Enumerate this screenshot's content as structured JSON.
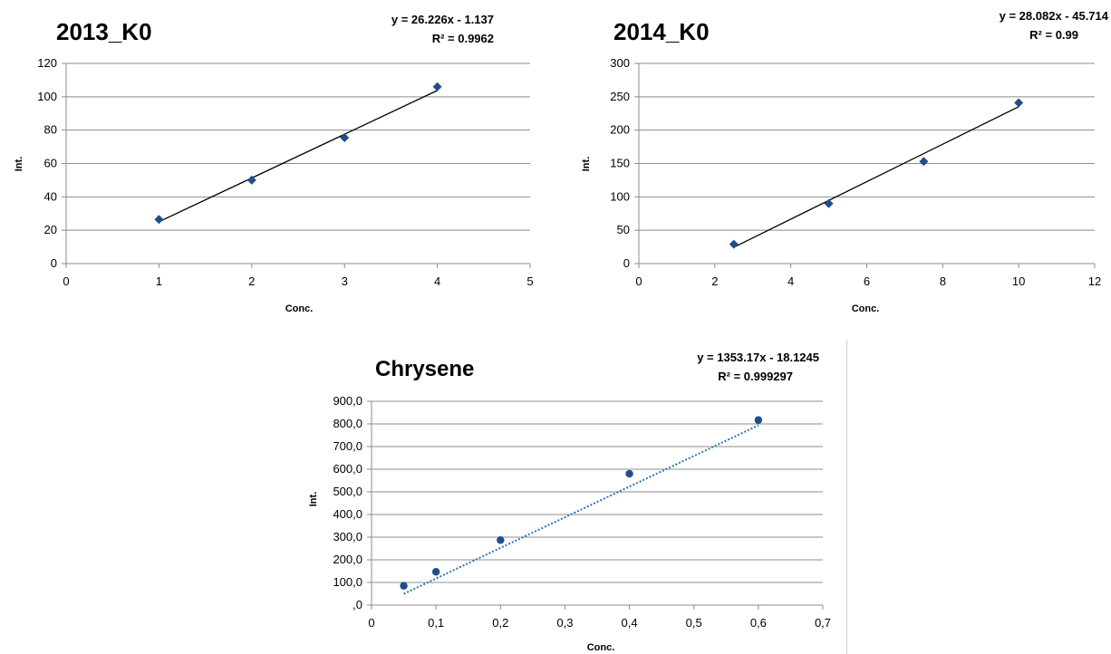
{
  "chart_data": [
    {
      "type": "scatter",
      "title": "2013_K0",
      "xlabel": "Conc.",
      "ylabel": "Int.",
      "xlim": [
        0,
        5
      ],
      "ylim": [
        0,
        120
      ],
      "x_ticks": [
        0,
        1,
        2,
        3,
        4,
        5
      ],
      "y_ticks": [
        0,
        20,
        40,
        60,
        80,
        100,
        120
      ],
      "tick_format": "int",
      "grid": "horizontal",
      "series": [
        {
          "x": [
            1,
            2,
            3,
            4
          ],
          "y": [
            26.5,
            50,
            75.5,
            106
          ],
          "marker": "diamond",
          "color": "#1f4e8c"
        }
      ],
      "trendline": {
        "type": "linear",
        "slope": 26.226,
        "intercept": -1.137,
        "x_range": [
          1,
          4
        ],
        "style": "solid",
        "color": "#000000"
      },
      "equation": "y = 26.226x - 1.137",
      "r2": "R² = 0.9962"
    },
    {
      "type": "scatter",
      "title": "2014_K0",
      "xlabel": "Conc.",
      "ylabel": "Int.",
      "xlim": [
        0,
        12
      ],
      "ylim": [
        0,
        300
      ],
      "x_ticks": [
        0,
        2,
        4,
        6,
        8,
        10,
        12
      ],
      "y_ticks": [
        0,
        50,
        100,
        150,
        200,
        250,
        300
      ],
      "tick_format": "int",
      "grid": "horizontal",
      "series": [
        {
          "x": [
            2.5,
            5,
            7.5,
            10
          ],
          "y": [
            29,
            90,
            153,
            241
          ],
          "marker": "diamond",
          "color": "#1f4e8c"
        }
      ],
      "trendline": {
        "type": "linear",
        "slope": 28.082,
        "intercept": -45.714,
        "x_range": [
          2.5,
          10
        ],
        "style": "solid",
        "color": "#000000"
      },
      "equation": "y = 28.082x - 45.714",
      "r2": "R² = 0.99"
    },
    {
      "type": "scatter",
      "title": "Chrysene",
      "xlabel": "Conc.",
      "ylabel": "Int.",
      "xlim": [
        0,
        0.7
      ],
      "ylim": [
        0,
        900
      ],
      "x_ticks": [
        0,
        0.1,
        0.2,
        0.3,
        0.4,
        0.5,
        0.6,
        0.7
      ],
      "x_tick_labels": [
        "0",
        "0,1",
        "0,2",
        "0,3",
        "0,4",
        "0,5",
        "0,6",
        "0,7"
      ],
      "y_ticks": [
        0,
        100,
        200,
        300,
        400,
        500,
        600,
        700,
        800,
        900
      ],
      "y_tick_labels": [
        ",0",
        "100,0",
        "200,0",
        "300,0",
        "400,0",
        "500,0",
        "600,0",
        "700,0",
        "800,0",
        "900,0"
      ],
      "grid": "horizontal",
      "series": [
        {
          "x": [
            0.05,
            0.1,
            0.2,
            0.4,
            0.6
          ],
          "y": [
            85,
            147,
            287,
            580,
            817
          ],
          "marker": "circle",
          "color": "#1f4e8c"
        }
      ],
      "trendline": {
        "type": "linear",
        "slope": 1353.17,
        "intercept": -18.1245,
        "x_range": [
          0.05,
          0.6
        ],
        "style": "dotted",
        "color": "#2e74b5"
      },
      "equation": "y = 1353.17x - 18.1245",
      "r2": "R² = 0.999297"
    }
  ]
}
